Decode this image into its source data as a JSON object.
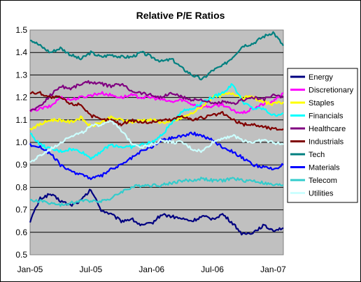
{
  "chart_data": {
    "type": "line",
    "title": "Relative P/E Ratios",
    "xlabel": "",
    "ylabel": "",
    "ylim": [
      0.5,
      1.5
    ],
    "yticks": [
      "0.5",
      "0.6",
      "0.7",
      "0.8",
      "0.9",
      "1.0",
      "1.1",
      "1.2",
      "1.3",
      "1.4",
      "1.5"
    ],
    "x_tick_labels": [
      "Jan-05",
      "Jul-05",
      "Jan-06",
      "Jul-06",
      "Jan-07"
    ],
    "x": [
      "Jan-05",
      "Feb-05",
      "Mar-05",
      "Apr-05",
      "May-05",
      "Jun-05",
      "Jul-05",
      "Aug-05",
      "Sep-05",
      "Oct-05",
      "Nov-05",
      "Dec-05",
      "Jan-06",
      "Feb-06",
      "Mar-06",
      "Apr-06",
      "May-06",
      "Jun-06",
      "Jul-06",
      "Aug-06",
      "Sep-06",
      "Oct-06",
      "Nov-06",
      "Dec-06",
      "Jan-07",
      "Feb-07"
    ],
    "grid": "horizontal",
    "plot_background": "#c0c0c0",
    "legend_position": "right",
    "series": [
      {
        "name": "Energy",
        "color": "#000080",
        "values": [
          0.65,
          0.75,
          0.77,
          0.74,
          0.72,
          0.74,
          0.79,
          0.7,
          0.68,
          0.65,
          0.66,
          0.63,
          0.64,
          0.68,
          0.67,
          0.66,
          0.65,
          0.67,
          0.66,
          0.68,
          0.64,
          0.59,
          0.6,
          0.63,
          0.61,
          0.62
        ]
      },
      {
        "name": "Discretionary",
        "color": "#ff00ff",
        "values": [
          1.14,
          1.15,
          1.16,
          1.2,
          1.19,
          1.2,
          1.21,
          1.22,
          1.21,
          1.2,
          1.21,
          1.2,
          1.2,
          1.19,
          1.18,
          1.19,
          1.17,
          1.16,
          1.16,
          1.17,
          1.14,
          1.13,
          1.15,
          1.17,
          1.18,
          1.22
        ]
      },
      {
        "name": "Staples",
        "color": "#ffff00",
        "values": [
          1.06,
          1.08,
          1.1,
          1.1,
          1.09,
          1.11,
          1.07,
          1.09,
          1.11,
          1.1,
          1.09,
          1.1,
          1.1,
          1.09,
          1.09,
          1.11,
          1.13,
          1.16,
          1.2,
          1.21,
          1.22,
          1.2,
          1.2,
          1.18,
          1.17,
          1.18
        ]
      },
      {
        "name": "Financials",
        "color": "#00ffff",
        "values": [
          1.04,
          0.99,
          0.97,
          0.96,
          0.97,
          0.96,
          0.93,
          0.96,
          0.99,
          0.98,
          0.98,
          0.99,
          1.0,
          1.03,
          1.09,
          1.14,
          1.15,
          1.18,
          1.2,
          1.22,
          1.26,
          1.18,
          1.15,
          1.15,
          1.12,
          1.13
        ]
      },
      {
        "name": "Healthcare",
        "color": "#800080",
        "values": [
          1.14,
          1.16,
          1.21,
          1.25,
          1.24,
          1.26,
          1.27,
          1.26,
          1.25,
          1.26,
          1.23,
          1.22,
          1.21,
          1.2,
          1.22,
          1.2,
          1.19,
          1.19,
          1.17,
          1.18,
          1.17,
          1.19,
          1.2,
          1.19,
          1.21,
          1.2
        ]
      },
      {
        "name": "Industrials",
        "color": "#800000",
        "values": [
          1.22,
          1.22,
          1.2,
          1.2,
          1.17,
          1.17,
          1.12,
          1.1,
          1.1,
          1.08,
          1.1,
          1.09,
          1.09,
          1.1,
          1.1,
          1.12,
          1.1,
          1.11,
          1.12,
          1.13,
          1.1,
          1.08,
          1.08,
          1.07,
          1.06,
          1.06
        ]
      },
      {
        "name": "Tech",
        "color": "#008080",
        "values": [
          1.46,
          1.43,
          1.4,
          1.42,
          1.39,
          1.37,
          1.4,
          1.38,
          1.39,
          1.38,
          1.38,
          1.4,
          1.38,
          1.36,
          1.37,
          1.33,
          1.3,
          1.28,
          1.32,
          1.34,
          1.38,
          1.43,
          1.44,
          1.47,
          1.49,
          1.43
        ]
      },
      {
        "name": "Materials",
        "color": "#0000ff",
        "values": [
          0.99,
          0.98,
          0.95,
          0.9,
          0.87,
          0.86,
          0.84,
          0.85,
          0.88,
          0.9,
          0.93,
          0.96,
          0.98,
          1.01,
          1.02,
          1.03,
          1.04,
          1.03,
          1.01,
          0.98,
          0.96,
          0.93,
          0.9,
          0.89,
          0.88,
          0.9
        ]
      },
      {
        "name": "Telecom",
        "color": "#33cccc",
        "values": [
          0.74,
          0.74,
          0.73,
          0.72,
          0.73,
          0.74,
          0.74,
          0.74,
          0.75,
          0.78,
          0.8,
          0.81,
          0.81,
          0.81,
          0.82,
          0.83,
          0.83,
          0.84,
          0.83,
          0.83,
          0.84,
          0.83,
          0.83,
          0.82,
          0.81,
          0.81
        ]
      },
      {
        "name": "Utilities",
        "color": "#ccffff",
        "values": [
          0.91,
          0.94,
          0.97,
          1.0,
          1.03,
          1.04,
          1.07,
          1.08,
          1.1,
          1.05,
          1.0,
          0.98,
          0.99,
          1.01,
          1.0,
          1.0,
          0.97,
          0.96,
          1.0,
          1.02,
          1.03,
          1.01,
          1.0,
          1.01,
          1.0,
          0.99
        ]
      }
    ]
  }
}
